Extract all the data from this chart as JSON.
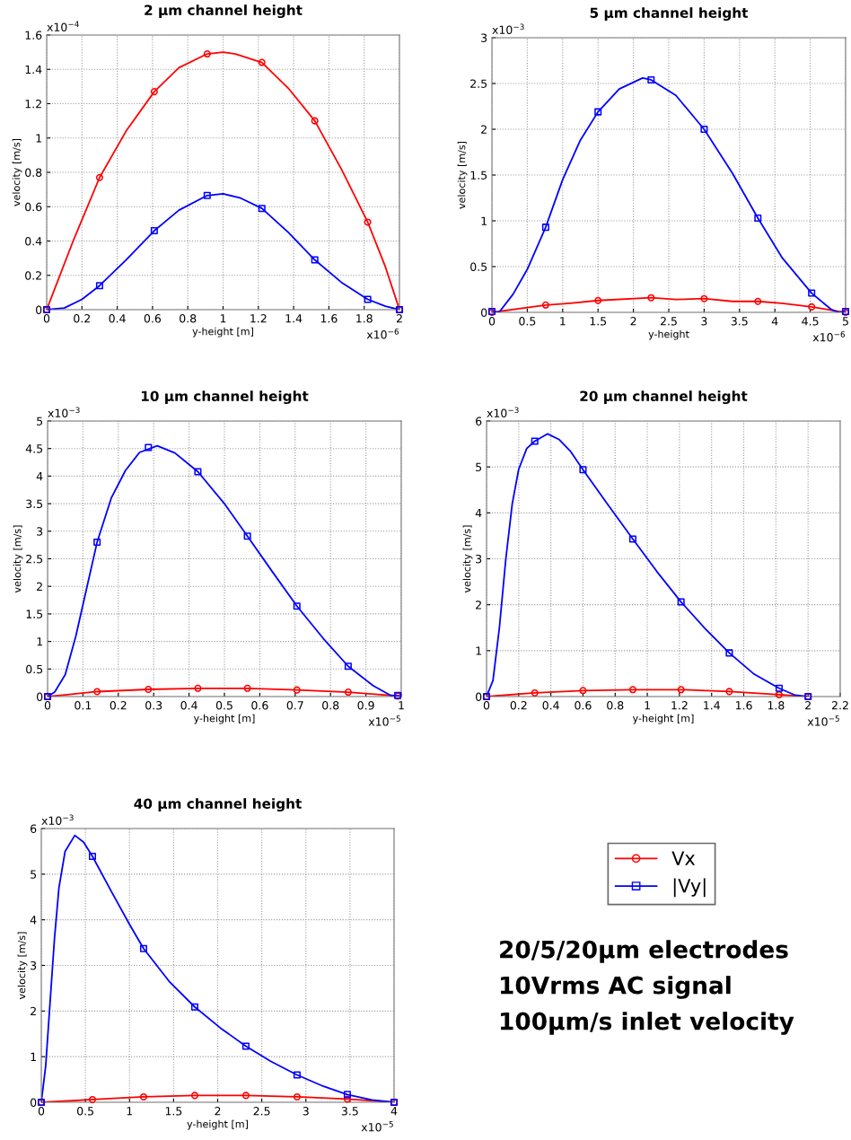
{
  "chart_data": [
    {
      "type": "line",
      "title": "2 µm channel height",
      "xlabel": "y-height [m]",
      "ylabel": "velocity [m/s]",
      "xlim": [
        0,
        2
      ],
      "ylim": [
        0,
        1.6
      ],
      "xticks": [
        0,
        0.2,
        0.4,
        0.6,
        0.8,
        1,
        1.2,
        1.4,
        1.6,
        1.8,
        2
      ],
      "yticks": [
        0,
        0.2,
        0.4,
        0.6,
        0.8,
        1,
        1.2,
        1.4,
        1.6
      ],
      "grid": true,
      "annotations": [
        "x10$^{−6}$",
        "x10$^{−4}$"
      ],
      "series": [
        {
          "type": "line",
          "color": "#ff0000",
          "x": [
            0,
            0.15,
            0.3,
            0.45,
            0.61,
            0.75,
            0.91,
            1.0,
            1.07,
            1.22,
            1.37,
            1.52,
            1.67,
            1.82,
            1.92,
            2
          ],
          "values": [
            0,
            0.4,
            0.77,
            1.04,
            1.27,
            1.41,
            1.49,
            1.5,
            1.49,
            1.44,
            1.29,
            1.1,
            0.82,
            0.51,
            0.25,
            0
          ]
        },
        {
          "type": "scatter",
          "color": "#ff0000",
          "marker": "circle",
          "x": [
            0,
            0.3,
            0.61,
            0.91,
            1.22,
            1.52,
            1.82,
            2
          ],
          "values": [
            0,
            0.77,
            1.27,
            1.49,
            1.44,
            1.1,
            0.51,
            0
          ]
        },
        {
          "type": "line",
          "color": "#0000ff",
          "x": [
            0,
            0.1,
            0.2,
            0.3,
            0.45,
            0.61,
            0.75,
            0.91,
            1.0,
            1.1,
            1.22,
            1.37,
            1.52,
            1.67,
            1.82,
            1.92,
            2
          ],
          "values": [
            0,
            0.01,
            0.06,
            0.14,
            0.29,
            0.46,
            0.58,
            0.665,
            0.675,
            0.65,
            0.59,
            0.45,
            0.29,
            0.16,
            0.06,
            0.02,
            0
          ]
        },
        {
          "type": "scatter",
          "color": "#0000ff",
          "marker": "square",
          "x": [
            0,
            0.3,
            0.61,
            0.91,
            1.22,
            1.52,
            1.82,
            2
          ],
          "values": [
            0,
            0.14,
            0.46,
            0.665,
            0.59,
            0.29,
            0.06,
            0
          ]
        }
      ]
    },
    {
      "type": "line",
      "title": "5 µm channel height",
      "xlabel": "y-height",
      "ylabel": "velocity [m/s]",
      "xlim": [
        0,
        5
      ],
      "ylim": [
        0,
        3
      ],
      "xticks": [
        0,
        0.5,
        1,
        1.5,
        2,
        2.5,
        3,
        3.5,
        4,
        4.5,
        5
      ],
      "yticks": [
        0,
        0.5,
        1,
        1.5,
        2,
        2.5,
        3
      ],
      "grid": true,
      "annotations": [
        "x10$^{−6}$",
        "x10$^{−3}$"
      ],
      "series": [
        {
          "type": "line",
          "color": "#ff0000",
          "x": [
            0,
            0.76,
            1.1,
            1.5,
            2.25,
            2.6,
            3.0,
            3.4,
            3.76,
            4.1,
            4.52,
            4.9,
            5
          ],
          "values": [
            0,
            0.08,
            0.1,
            0.13,
            0.16,
            0.14,
            0.15,
            0.12,
            0.12,
            0.1,
            0.06,
            0.01,
            0
          ]
        },
        {
          "type": "scatter",
          "color": "#ff0000",
          "marker": "circle",
          "x": [
            0,
            0.76,
            1.5,
            2.25,
            3.0,
            3.76,
            4.52,
            5
          ],
          "values": [
            0,
            0.08,
            0.13,
            0.16,
            0.15,
            0.12,
            0.06,
            0
          ]
        },
        {
          "type": "line",
          "color": "#0000ff",
          "x": [
            0,
            0.1,
            0.3,
            0.5,
            0.76,
            1.0,
            1.25,
            1.5,
            1.8,
            2.13,
            2.25,
            2.6,
            3.0,
            3.4,
            3.76,
            4.1,
            4.52,
            4.8,
            4.9,
            5
          ],
          "values": [
            0.01,
            0,
            0.2,
            0.47,
            0.93,
            1.45,
            1.88,
            2.19,
            2.44,
            2.56,
            2.54,
            2.37,
            2.0,
            1.52,
            1.03,
            0.6,
            0.21,
            0.03,
            0,
            0.01
          ]
        },
        {
          "type": "scatter",
          "color": "#0000ff",
          "marker": "square",
          "x": [
            0,
            0.76,
            1.5,
            2.25,
            3.0,
            3.76,
            4.52,
            5
          ],
          "values": [
            0.01,
            0.93,
            2.19,
            2.54,
            2.0,
            1.03,
            0.21,
            0.01
          ]
        }
      ]
    },
    {
      "type": "line",
      "title": "10 µm channel height",
      "xlabel": "y-height [m]",
      "ylabel": "velocity [m/s]",
      "xlim": [
        0,
        1
      ],
      "ylim": [
        0,
        5
      ],
      "xticks": [
        0,
        0.1,
        0.2,
        0.3,
        0.4,
        0.5,
        0.6,
        0.7,
        0.8,
        0.9,
        1
      ],
      "yticks": [
        0,
        0.5,
        1,
        1.5,
        2,
        2.5,
        3,
        3.5,
        4,
        4.5,
        5
      ],
      "grid": true,
      "annotations": [
        "x10$^{−5}$",
        "x10$^{−3}$"
      ],
      "series": [
        {
          "type": "line",
          "color": "#ff0000",
          "x": [
            0,
            0.05,
            0.14,
            0.285,
            0.425,
            0.565,
            0.705,
            0.85,
            0.95,
            0.99
          ],
          "values": [
            0,
            0.03,
            0.09,
            0.13,
            0.15,
            0.15,
            0.12,
            0.08,
            0.03,
            0.01
          ]
        },
        {
          "type": "scatter",
          "color": "#ff0000",
          "marker": "circle",
          "x": [
            0,
            0.14,
            0.285,
            0.425,
            0.565,
            0.705,
            0.85,
            0.99
          ],
          "values": [
            0,
            0.09,
            0.13,
            0.15,
            0.15,
            0.12,
            0.08,
            0.01
          ]
        },
        {
          "type": "line",
          "color": "#0000ff",
          "x": [
            0,
            0.02,
            0.05,
            0.08,
            0.11,
            0.14,
            0.18,
            0.22,
            0.26,
            0.31,
            0.36,
            0.425,
            0.5,
            0.565,
            0.635,
            0.705,
            0.78,
            0.85,
            0.92,
            0.97,
            1
          ],
          "values": [
            0,
            0.08,
            0.4,
            1.1,
            1.95,
            2.8,
            3.6,
            4.1,
            4.43,
            4.55,
            4.42,
            4.08,
            3.5,
            2.91,
            2.27,
            1.64,
            1.05,
            0.55,
            0.2,
            0.02,
            0.01
          ]
        },
        {
          "type": "scatter",
          "color": "#0000ff",
          "marker": "square",
          "x": [
            0,
            0.14,
            0.285,
            0.425,
            0.565,
            0.705,
            0.85,
            0.99
          ],
          "values": [
            0,
            2.8,
            4.52,
            4.08,
            2.91,
            1.64,
            0.55,
            0.02
          ]
        }
      ]
    },
    {
      "type": "line",
      "title": "20 µm channel height",
      "xlabel": "y-height [m]",
      "ylabel": "velocity [m/s]",
      "xlim": [
        0,
        2.2
      ],
      "ylim": [
        0,
        6
      ],
      "xticks": [
        0,
        0.2,
        0.4,
        0.6,
        0.8,
        1,
        1.2,
        1.4,
        1.6,
        1.8,
        2,
        2.2
      ],
      "yticks": [
        0,
        1,
        2,
        3,
        4,
        5,
        6
      ],
      "grid": true,
      "annotations": [
        "x10$^{−5}$",
        "x10$^{−3}$"
      ],
      "series": [
        {
          "type": "line",
          "color": "#ff0000",
          "x": [
            0,
            0.3,
            0.6,
            0.91,
            1.21,
            1.51,
            1.82,
            2.0
          ],
          "values": [
            0,
            0.08,
            0.13,
            0.15,
            0.15,
            0.11,
            0.04,
            0
          ]
        },
        {
          "type": "scatter",
          "color": "#ff0000",
          "marker": "circle",
          "x": [
            0,
            0.3,
            0.6,
            0.91,
            1.21,
            1.51,
            1.82,
            2.0
          ],
          "values": [
            0,
            0.08,
            0.13,
            0.15,
            0.15,
            0.11,
            0.04,
            0
          ]
        },
        {
          "type": "line",
          "color": "#0000ff",
          "x": [
            0,
            0.04,
            0.08,
            0.12,
            0.16,
            0.2,
            0.25,
            0.3,
            0.38,
            0.45,
            0.52,
            0.6,
            0.75,
            0.91,
            1.06,
            1.21,
            1.36,
            1.51,
            1.66,
            1.82,
            1.92,
            2.0
          ],
          "values": [
            0,
            0.35,
            1.5,
            3.0,
            4.2,
            4.95,
            5.4,
            5.56,
            5.72,
            5.6,
            5.35,
            4.94,
            4.2,
            3.43,
            2.72,
            2.06,
            1.48,
            0.95,
            0.5,
            0.18,
            0.03,
            0
          ]
        },
        {
          "type": "scatter",
          "color": "#0000ff",
          "marker": "square",
          "x": [
            0,
            0.3,
            0.6,
            0.91,
            1.21,
            1.51,
            1.82,
            2.0
          ],
          "values": [
            0,
            5.56,
            4.94,
            3.43,
            2.06,
            0.95,
            0.18,
            0
          ]
        }
      ]
    },
    {
      "type": "line",
      "title": "40 µm channel height",
      "xlabel": "y-height [m]",
      "ylabel": "velocity [m/s]",
      "xlim": [
        0,
        4
      ],
      "ylim": [
        0,
        6
      ],
      "xticks": [
        0,
        0.5,
        1,
        1.5,
        2,
        2.5,
        3,
        3.5,
        4
      ],
      "yticks": [
        0,
        1,
        2,
        3,
        4,
        5,
        6
      ],
      "grid": true,
      "legend": "right",
      "annotations": [
        "x10$^{−5}$",
        "x10$^{−3}$"
      ],
      "series": [
        {
          "type": "line",
          "name": "Vx",
          "color": "#ff0000",
          "x": [
            0,
            0.3,
            0.58,
            1.16,
            1.74,
            2.32,
            2.9,
            3.47,
            4
          ],
          "values": [
            0,
            0.03,
            0.06,
            0.12,
            0.15,
            0.15,
            0.12,
            0.07,
            0
          ]
        },
        {
          "type": "scatter",
          "color": "#ff0000",
          "marker": "circle",
          "x": [
            0,
            0.58,
            1.16,
            1.74,
            2.32,
            2.9,
            3.47,
            4
          ],
          "values": [
            0,
            0.06,
            0.12,
            0.15,
            0.15,
            0.12,
            0.07,
            0
          ]
        },
        {
          "type": "line",
          "name": "|Vy|",
          "color": "#0000ff",
          "x": [
            0,
            0.05,
            0.1,
            0.15,
            0.2,
            0.27,
            0.38,
            0.48,
            0.58,
            0.8,
            1.0,
            1.16,
            1.45,
            1.74,
            2.03,
            2.32,
            2.6,
            2.9,
            3.2,
            3.47,
            3.75,
            4
          ],
          "values": [
            0,
            0.8,
            2.2,
            3.6,
            4.7,
            5.5,
            5.85,
            5.7,
            5.39,
            4.6,
            3.9,
            3.37,
            2.65,
            2.09,
            1.63,
            1.23,
            0.9,
            0.6,
            0.35,
            0.17,
            0.05,
            0
          ]
        },
        {
          "type": "scatter",
          "color": "#0000ff",
          "marker": "square",
          "x": [
            0,
            0.58,
            1.16,
            1.74,
            2.32,
            2.9,
            3.47,
            4
          ],
          "values": [
            0,
            5.39,
            3.37,
            2.09,
            1.23,
            0.6,
            0.17,
            0
          ]
        }
      ]
    },
    {
      "type": "other",
      "annotations": [
        "20/5/20µm electrodes",
        "10Vrms AC signal",
        "100µm/s inlet velocity"
      ]
    }
  ]
}
